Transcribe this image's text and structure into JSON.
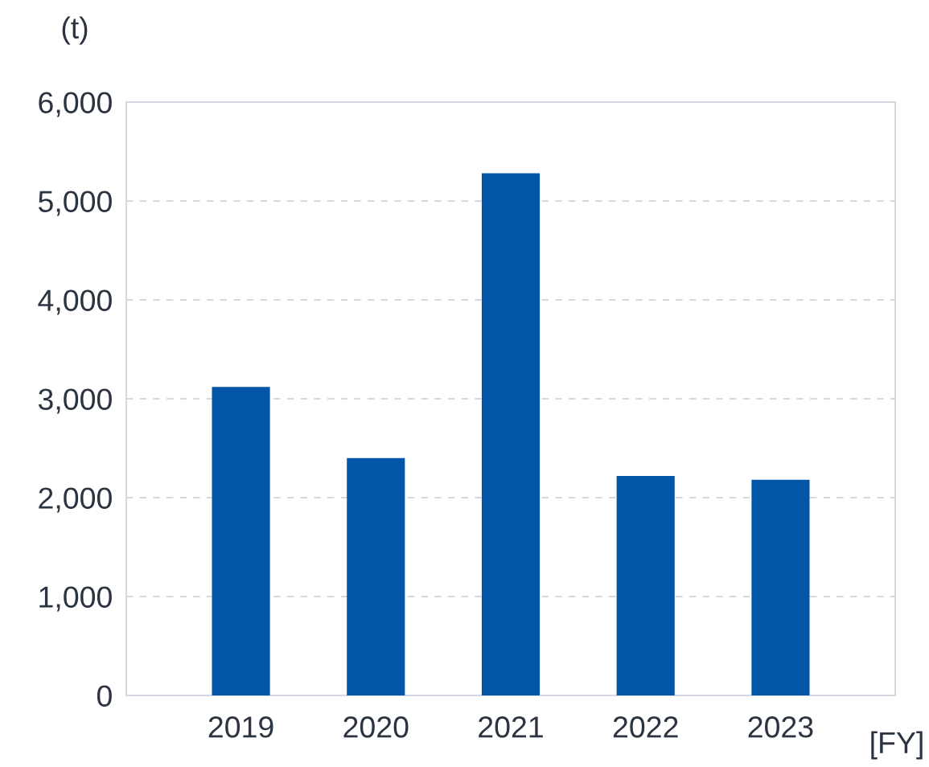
{
  "chart_data": {
    "type": "bar",
    "ylabel": "(t)",
    "xlabel": "[FY]",
    "categories": [
      "2019",
      "2020",
      "2021",
      "2022",
      "2023"
    ],
    "values": [
      3120,
      2400,
      5280,
      2220,
      2180
    ],
    "color": "#0256a8",
    "ylim": [
      0,
      6000
    ],
    "yticks": [
      0,
      {
        "value": 1000,
        "label": "1,000"
      },
      {
        "value": 2000,
        "label": "2,000"
      },
      {
        "value": 3000,
        "label": "3,000"
      },
      {
        "value": 4000,
        "label": "4,000"
      },
      {
        "value": 5000,
        "label": "5,000"
      },
      {
        "value": 6000,
        "label": "6,000"
      }
    ],
    "grid": "y",
    "legend": false
  }
}
